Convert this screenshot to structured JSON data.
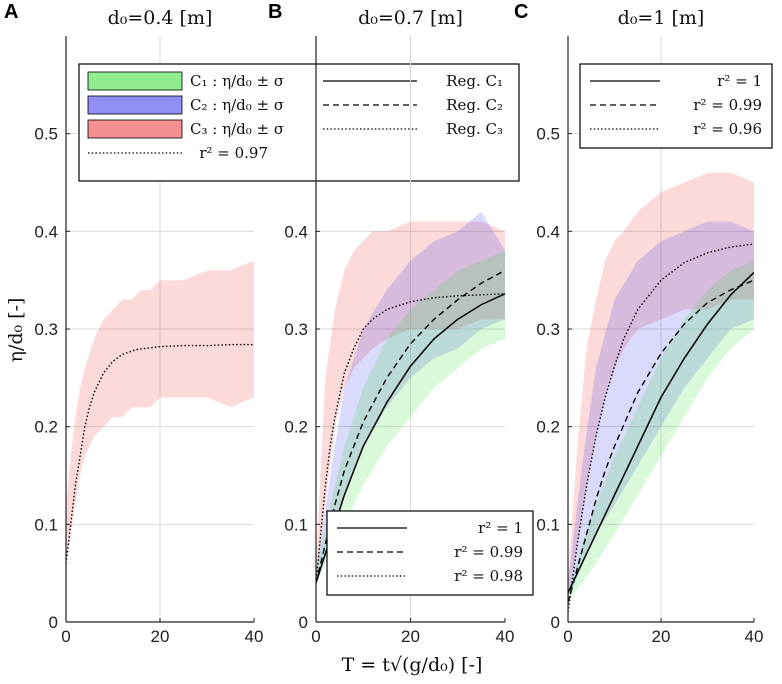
{
  "figure": {
    "xlabel": "T = t√(g/d₀) [-]",
    "ylabel": "η/d₀ [-]"
  },
  "colors": {
    "C1": "#33dd33",
    "C2": "#3333ee",
    "C3": "#ee3333",
    "grid": "#d9d9d9",
    "axis": "#222222"
  },
  "chart_data": [
    {
      "panel": "A",
      "type": "line",
      "title": "d₀=0.4 [m]",
      "xlim": [
        0,
        40
      ],
      "ylim": [
        0,
        0.6
      ],
      "xticks": [
        0,
        20,
        40
      ],
      "yticks": [
        0,
        0.1,
        0.2,
        0.3,
        0.4,
        0.5
      ],
      "bands": [
        {
          "name": "C3",
          "color_key": "C3",
          "x": [
            0,
            1,
            2,
            3,
            4,
            6,
            8,
            10,
            12,
            14,
            16,
            18,
            20,
            25,
            30,
            35,
            40
          ],
          "lower": [
            0.06,
            0.09,
            0.12,
            0.15,
            0.17,
            0.19,
            0.2,
            0.21,
            0.21,
            0.22,
            0.22,
            0.22,
            0.23,
            0.23,
            0.23,
            0.22,
            0.23
          ],
          "upper": [
            0.12,
            0.17,
            0.21,
            0.24,
            0.26,
            0.29,
            0.31,
            0.32,
            0.33,
            0.33,
            0.34,
            0.34,
            0.35,
            0.35,
            0.36,
            0.36,
            0.37
          ]
        }
      ],
      "curves": [
        {
          "name": "r² = 0.97",
          "style": "dotted",
          "x": [
            0,
            1,
            2,
            3,
            4,
            5,
            6,
            8,
            10,
            12,
            15,
            20,
            25,
            30,
            35,
            40
          ],
          "y": [
            0.06,
            0.1,
            0.14,
            0.17,
            0.2,
            0.22,
            0.235,
            0.255,
            0.267,
            0.274,
            0.279,
            0.282,
            0.283,
            0.283,
            0.284,
            0.284
          ]
        }
      ],
      "legend": {
        "position": "top",
        "entries": [
          {
            "kind": "band",
            "color_key": "C1",
            "label": "C₁ : η/d₀ ± σ"
          },
          {
            "kind": "band",
            "color_key": "C2",
            "label": "C₂ : η/d₀ ± σ"
          },
          {
            "kind": "band",
            "color_key": "C3",
            "label": "C₃ : η/d₀ ± σ"
          },
          {
            "kind": "line",
            "style": "solid",
            "label": "Reg. C₁"
          },
          {
            "kind": "line",
            "style": "dashed",
            "label": "Reg. C₂"
          },
          {
            "kind": "line",
            "style": "dotted",
            "label": "Reg. C₃"
          },
          {
            "kind": "line",
            "style": "dotted",
            "label": "r² = 0.97"
          }
        ]
      }
    },
    {
      "panel": "B",
      "type": "line",
      "title": "d₀=0.7 [m]",
      "xlim": [
        0,
        40
      ],
      "ylim": [
        0,
        0.6
      ],
      "xticks": [
        0,
        20,
        40
      ],
      "yticks": [
        0,
        0.1,
        0.2,
        0.3,
        0.4
      ],
      "bands": [
        {
          "name": "C3",
          "color_key": "C3",
          "x": [
            0,
            2,
            4,
            6,
            8,
            10,
            12,
            15,
            20,
            25,
            30,
            35,
            40
          ],
          "lower": [
            0.04,
            0.12,
            0.2,
            0.24,
            0.26,
            0.27,
            0.28,
            0.29,
            0.3,
            0.3,
            0.3,
            0.31,
            0.31
          ],
          "upper": [
            0.06,
            0.25,
            0.32,
            0.36,
            0.38,
            0.39,
            0.4,
            0.4,
            0.41,
            0.41,
            0.41,
            0.41,
            0.4
          ]
        },
        {
          "name": "C2",
          "color_key": "C2",
          "x": [
            0,
            3,
            6,
            10,
            15,
            20,
            25,
            30,
            35,
            40
          ],
          "lower": [
            0.04,
            0.08,
            0.13,
            0.18,
            0.22,
            0.25,
            0.27,
            0.28,
            0.3,
            0.31
          ],
          "upper": [
            0.05,
            0.15,
            0.24,
            0.3,
            0.34,
            0.37,
            0.39,
            0.4,
            0.42,
            0.38
          ]
        },
        {
          "name": "C1",
          "color_key": "C1",
          "x": [
            0,
            3,
            6,
            10,
            15,
            20,
            25,
            30,
            35,
            40
          ],
          "lower": [
            0.04,
            0.07,
            0.1,
            0.14,
            0.18,
            0.21,
            0.24,
            0.26,
            0.28,
            0.29
          ],
          "upper": [
            0.05,
            0.12,
            0.18,
            0.24,
            0.29,
            0.32,
            0.34,
            0.36,
            0.37,
            0.38
          ]
        }
      ],
      "curves": [
        {
          "name": "r² = 1",
          "style": "solid",
          "x": [
            0,
            2,
            4,
            6,
            8,
            10,
            15,
            20,
            25,
            30,
            35,
            40
          ],
          "y": [
            0.04,
            0.07,
            0.1,
            0.13,
            0.155,
            0.18,
            0.225,
            0.262,
            0.29,
            0.31,
            0.325,
            0.336
          ]
        },
        {
          "name": "r² = 0.99",
          "style": "dashed",
          "x": [
            0,
            2,
            4,
            6,
            8,
            10,
            15,
            20,
            25,
            30,
            35,
            40
          ],
          "y": [
            0.04,
            0.08,
            0.12,
            0.155,
            0.18,
            0.205,
            0.25,
            0.285,
            0.31,
            0.33,
            0.347,
            0.36
          ]
        },
        {
          "name": "r² = 0.98",
          "style": "dotted",
          "x": [
            0,
            1,
            2,
            3,
            4,
            6,
            8,
            10,
            12,
            15,
            20,
            25,
            30,
            35,
            40
          ],
          "y": [
            0.04,
            0.09,
            0.14,
            0.18,
            0.21,
            0.255,
            0.28,
            0.3,
            0.31,
            0.32,
            0.328,
            0.332,
            0.334,
            0.335,
            0.336
          ]
        }
      ],
      "legend": {
        "position": "bottom-right",
        "entries": [
          {
            "kind": "line",
            "style": "solid",
            "label": "r² = 1"
          },
          {
            "kind": "line",
            "style": "dashed",
            "label": "r² = 0.99"
          },
          {
            "kind": "line",
            "style": "dotted",
            "label": "r² = 0.98"
          }
        ]
      }
    },
    {
      "panel": "C",
      "type": "line",
      "title": "d₀=1 [m]",
      "xlim": [
        0,
        40
      ],
      "ylim": [
        0,
        0.6
      ],
      "xticks": [
        0,
        20,
        40
      ],
      "yticks": [
        0,
        0.1,
        0.2,
        0.3,
        0.4,
        0.5
      ],
      "bands": [
        {
          "name": "C3",
          "color_key": "C3",
          "x": [
            0,
            2,
            4,
            6,
            8,
            10,
            12,
            15,
            20,
            25,
            30,
            35,
            40
          ],
          "lower": [
            0.02,
            0.08,
            0.14,
            0.19,
            0.23,
            0.26,
            0.28,
            0.3,
            0.31,
            0.32,
            0.32,
            0.33,
            0.33
          ],
          "upper": [
            0.04,
            0.18,
            0.28,
            0.33,
            0.37,
            0.39,
            0.4,
            0.42,
            0.44,
            0.45,
            0.46,
            0.46,
            0.45
          ]
        },
        {
          "name": "C2",
          "color_key": "C2",
          "x": [
            0,
            3,
            6,
            10,
            15,
            20,
            25,
            30,
            35,
            40
          ],
          "lower": [
            0.02,
            0.06,
            0.09,
            0.12,
            0.16,
            0.2,
            0.24,
            0.27,
            0.3,
            0.31
          ],
          "upper": [
            0.04,
            0.16,
            0.26,
            0.33,
            0.37,
            0.39,
            0.4,
            0.41,
            0.41,
            0.4
          ]
        },
        {
          "name": "C1",
          "color_key": "C1",
          "x": [
            0,
            3,
            6,
            10,
            15,
            20,
            25,
            30,
            35,
            40
          ],
          "lower": [
            0.02,
            0.04,
            0.06,
            0.09,
            0.13,
            0.17,
            0.21,
            0.25,
            0.28,
            0.3
          ],
          "upper": [
            0.03,
            0.08,
            0.12,
            0.17,
            0.22,
            0.27,
            0.31,
            0.34,
            0.36,
            0.37
          ]
        }
      ],
      "curves": [
        {
          "name": "r² = 1",
          "style": "solid",
          "x": [
            0,
            2,
            4,
            6,
            8,
            10,
            15,
            20,
            25,
            30,
            35,
            40
          ],
          "y": [
            0.03,
            0.05,
            0.07,
            0.09,
            0.11,
            0.13,
            0.18,
            0.23,
            0.27,
            0.305,
            0.335,
            0.358
          ]
        },
        {
          "name": "r² = 0.99",
          "style": "dashed",
          "x": [
            0,
            2,
            4,
            6,
            8,
            10,
            15,
            20,
            25,
            30,
            35,
            40
          ],
          "y": [
            0.02,
            0.055,
            0.09,
            0.125,
            0.155,
            0.18,
            0.235,
            0.275,
            0.305,
            0.327,
            0.34,
            0.35
          ]
        },
        {
          "name": "r² = 0.96",
          "style": "dotted",
          "x": [
            0,
            2,
            4,
            6,
            8,
            10,
            12,
            15,
            20,
            25,
            30,
            35,
            40
          ],
          "y": [
            0.01,
            0.08,
            0.14,
            0.19,
            0.23,
            0.262,
            0.29,
            0.32,
            0.35,
            0.368,
            0.378,
            0.384,
            0.387
          ]
        }
      ],
      "legend": {
        "position": "top",
        "entries": [
          {
            "kind": "line",
            "style": "solid",
            "label": "r² = 1"
          },
          {
            "kind": "line",
            "style": "dashed",
            "label": "r² = 0.99"
          },
          {
            "kind": "line",
            "style": "dotted",
            "label": "r² = 0.96"
          }
        ]
      }
    }
  ]
}
